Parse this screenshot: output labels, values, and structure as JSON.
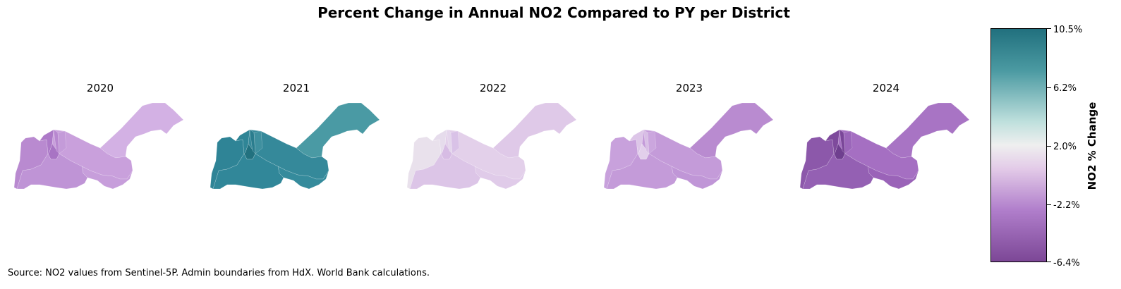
{
  "title": "Percent Change in Annual NO2 Compared to PY per District",
  "source": "Source: NO2 values from Sentinel-5P. Admin boundaries from HdX. World Bank calculations.",
  "colorbar": {
    "label": "NO2 % Change",
    "ticks": [
      "10.5%",
      "6.2%",
      "2.0%",
      "-2.2%",
      "-6.4%"
    ],
    "range": [
      -6.4,
      10.5
    ]
  },
  "maps": [
    {
      "year": "2020",
      "colors": {
        "east": "#d3b1e4",
        "center": "#c9a0dc",
        "west_far": "#b98ad0",
        "west_mid": "#ad7ac8",
        "west_north": "#a874c4",
        "south": "#c79edb",
        "southwest": "#bf94d6",
        "small1": "#b888d0",
        "small2": "#c49bd9"
      }
    },
    {
      "year": "2021",
      "colors": {
        "east": "#4a9aa4",
        "center": "#35899a",
        "west_far": "#2f8496",
        "west_mid": "#2f8596",
        "west_north": "#22717f",
        "south": "#358b9c",
        "southwest": "#318799",
        "small1": "#2a7d8e",
        "small2": "#3f909f"
      }
    },
    {
      "year": "2022",
      "colors": {
        "east": "#dfc9e8",
        "center": "#e3d0ea",
        "west_far": "#e9e1ec",
        "west_mid": "#e6dcec",
        "west_north": "#d7bce4",
        "south": "#e0cbe9",
        "southwest": "#dcc5e7",
        "small1": "#e4d6ec",
        "small2": "#d9c2e7"
      }
    },
    {
      "year": "2023",
      "colors": {
        "east": "#b98bd0",
        "center": "#c49bd9",
        "west_far": "#c8a1dc",
        "west_mid": "#ddc6e8",
        "west_north": "#e2cfeb",
        "south": "#c096d7",
        "southwest": "#c49bd9",
        "small1": "#d8bee5",
        "small2": "#cba6de"
      }
    },
    {
      "year": "2024",
      "colors": {
        "east": "#a874c4",
        "center": "#a56fc2",
        "west_far": "#8c58aa",
        "west_mid": "#7e4a9c",
        "west_north": "#6f3f8f",
        "south": "#9a63b8",
        "southwest": "#9460b3",
        "small1": "#7a4699",
        "small2": "#9b66ba"
      }
    }
  ]
}
